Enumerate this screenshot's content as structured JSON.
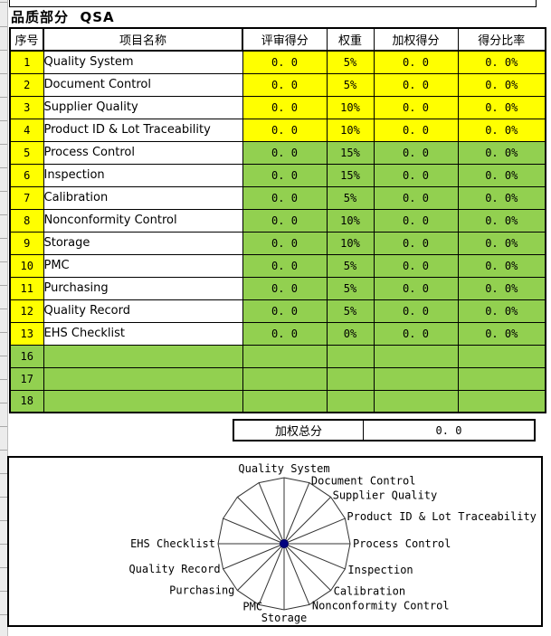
{
  "page": {
    "title": "品质部分  QSA"
  },
  "colors": {
    "yellow": "#FFFF00",
    "green": "#92D050",
    "border": "#000000",
    "radar_line": "#333333",
    "radar_dot": "#000080"
  },
  "table": {
    "headers": {
      "no": "序号",
      "name": "项目名称",
      "score": "评审得分",
      "weight": "权重",
      "weighted": "加权得分",
      "ratio": "得分比率"
    },
    "rows": [
      {
        "no": "1",
        "name": "Quality System",
        "score": "0. 0",
        "weight": "5%",
        "weighted": "0. 0",
        "ratio": "0. 0%",
        "style": "yellow"
      },
      {
        "no": "2",
        "name": "Document Control",
        "score": "0. 0",
        "weight": "5%",
        "weighted": "0. 0",
        "ratio": "0. 0%",
        "style": "yellow"
      },
      {
        "no": "3",
        "name": "Supplier Quality",
        "score": "0. 0",
        "weight": "10%",
        "weighted": "0. 0",
        "ratio": "0. 0%",
        "style": "yellow"
      },
      {
        "no": "4",
        "name": "Product ID & Lot Traceability",
        "score": "0. 0",
        "weight": "10%",
        "weighted": "0. 0",
        "ratio": "0. 0%",
        "style": "yellow"
      },
      {
        "no": "5",
        "name": "Process Control",
        "score": "0. 0",
        "weight": "15%",
        "weighted": "0. 0",
        "ratio": "0. 0%",
        "style": "green"
      },
      {
        "no": "6",
        "name": "Inspection",
        "score": "0. 0",
        "weight": "15%",
        "weighted": "0. 0",
        "ratio": "0. 0%",
        "style": "green"
      },
      {
        "no": "7",
        "name": "Calibration",
        "score": "0. 0",
        "weight": "5%",
        "weighted": "0. 0",
        "ratio": "0. 0%",
        "style": "green"
      },
      {
        "no": "8",
        "name": "Nonconformity Control",
        "score": "0. 0",
        "weight": "10%",
        "weighted": "0. 0",
        "ratio": "0. 0%",
        "style": "green"
      },
      {
        "no": "9",
        "name": "Storage",
        "score": "0. 0",
        "weight": "10%",
        "weighted": "0. 0",
        "ratio": "0. 0%",
        "style": "green"
      },
      {
        "no": "10",
        "name": "PMC",
        "score": "0. 0",
        "weight": "5%",
        "weighted": "0. 0",
        "ratio": "0. 0%",
        "style": "green"
      },
      {
        "no": "11",
        "name": "Purchasing",
        "score": "0. 0",
        "weight": "5%",
        "weighted": "0. 0",
        "ratio": "0. 0%",
        "style": "green"
      },
      {
        "no": "12",
        "name": "Quality Record",
        "score": "0. 0",
        "weight": "5%",
        "weighted": "0. 0",
        "ratio": "0. 0%",
        "style": "green"
      },
      {
        "no": "13",
        "name": "EHS Checklist",
        "score": "0. 0",
        "weight": "0%",
        "weighted": "0. 0",
        "ratio": "0. 0%",
        "style": "green"
      },
      {
        "no": "16",
        "name": "",
        "score": "",
        "weight": "",
        "weighted": "",
        "ratio": "",
        "style": "green-full"
      },
      {
        "no": "17",
        "name": "",
        "score": "",
        "weight": "",
        "weighted": "",
        "ratio": "",
        "style": "green-full"
      },
      {
        "no": "18",
        "name": "",
        "score": "",
        "weight": "",
        "weighted": "",
        "ratio": "",
        "style": "green-full"
      }
    ],
    "total": {
      "label": "加权总分",
      "value": "0. 0"
    }
  },
  "chart_data": {
    "type": "radar",
    "categories": [
      "Quality System",
      "Document Control",
      "Supplier Quality",
      "Product ID & Lot Traceability",
      "Process Control",
      "Inspection",
      "Calibration",
      "Nonconformity Control",
      "Storage",
      "PMC",
      "Purchasing",
      "Quality Record",
      "EHS Checklist",
      "",
      "",
      ""
    ],
    "series": [
      {
        "name": "",
        "values": [
          0,
          0,
          0,
          0,
          0,
          0,
          0,
          0,
          0,
          0,
          0,
          0,
          0,
          0,
          0,
          0
        ]
      }
    ],
    "axes_count": 16,
    "start_angle_deg": 90,
    "direction": "clockwise",
    "gridlines": false,
    "legend": "none",
    "title": ""
  }
}
